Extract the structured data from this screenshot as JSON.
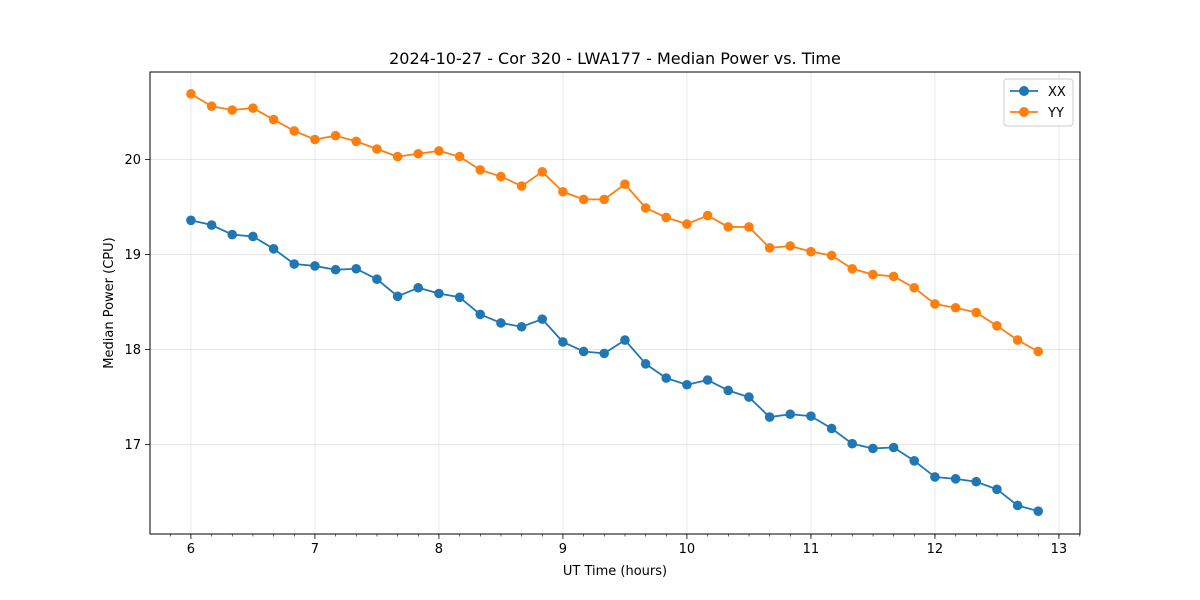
{
  "chart_data": {
    "type": "line",
    "title": "2024-10-27 - Cor 320 - LWA177 - Median Power vs. Time",
    "xlabel": "UT Time (hours)",
    "ylabel": "Median Power (CPU)",
    "xlim": [
      5.67,
      13.17
    ],
    "ylim": [
      16.06,
      20.92
    ],
    "xticks": [
      6,
      7,
      8,
      9,
      10,
      11,
      12,
      13
    ],
    "xticks_minor_step": 0.1667,
    "yticks": [
      17,
      18,
      19,
      20
    ],
    "grid": true,
    "legend_position": "top-right",
    "x": [
      6.0,
      6.167,
      6.333,
      6.5,
      6.667,
      6.833,
      7.0,
      7.167,
      7.333,
      7.5,
      7.667,
      7.833,
      8.0,
      8.167,
      8.333,
      8.5,
      8.667,
      8.833,
      9.0,
      9.167,
      9.333,
      9.5,
      9.667,
      9.833,
      10.0,
      10.167,
      10.333,
      10.5,
      10.667,
      10.833,
      11.0,
      11.167,
      11.333,
      11.5,
      11.667,
      11.833,
      12.0,
      12.167,
      12.333,
      12.5,
      12.667,
      12.833
    ],
    "series": [
      {
        "name": "XX",
        "color": "#1f77b4",
        "values": [
          19.36,
          19.31,
          19.21,
          19.19,
          19.06,
          18.9,
          18.88,
          18.84,
          18.85,
          18.74,
          18.56,
          18.65,
          18.59,
          18.55,
          18.37,
          18.28,
          18.24,
          18.32,
          18.08,
          17.98,
          17.96,
          18.1,
          17.85,
          17.7,
          17.63,
          17.68,
          17.57,
          17.5,
          17.29,
          17.32,
          17.3,
          17.17,
          17.01,
          16.96,
          16.97,
          16.83,
          16.66,
          16.64,
          16.61,
          16.53,
          16.36,
          16.3
        ]
      },
      {
        "name": "YY",
        "color": "#ff7f0e",
        "values": [
          20.69,
          20.56,
          20.52,
          20.54,
          20.42,
          20.3,
          20.21,
          20.25,
          20.19,
          20.11,
          20.03,
          20.06,
          20.09,
          20.03,
          19.89,
          19.82,
          19.72,
          19.87,
          19.66,
          19.58,
          19.58,
          19.74,
          19.49,
          19.39,
          19.32,
          19.41,
          19.29,
          19.29,
          19.07,
          19.09,
          19.03,
          18.99,
          18.85,
          18.79,
          18.77,
          18.65,
          18.48,
          18.44,
          18.39,
          18.25,
          18.1,
          17.98
        ]
      }
    ]
  }
}
